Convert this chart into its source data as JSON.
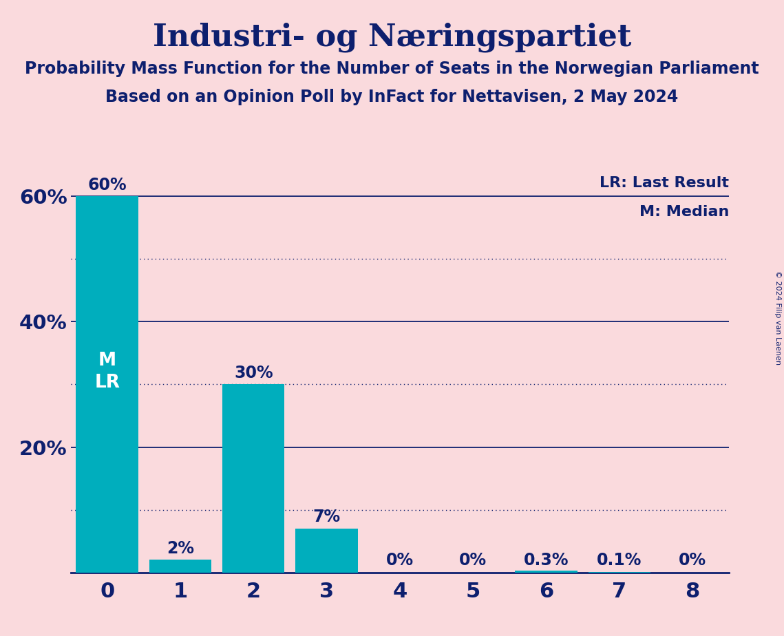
{
  "title": "Industri- og Næringspartiet",
  "subtitle1": "Probability Mass Function for the Number of Seats in the Norwegian Parliament",
  "subtitle2": "Based on an Opinion Poll by InFact for Nettavisen, 2 May 2024",
  "copyright": "© 2024 Filip van Laenen",
  "categories": [
    0,
    1,
    2,
    3,
    4,
    5,
    6,
    7,
    8
  ],
  "values": [
    60,
    2,
    30,
    7,
    0,
    0,
    0.3,
    0.1,
    0
  ],
  "bar_color": "#00AEBD",
  "background_color": "#FADADD",
  "title_color": "#0D1F6E",
  "label_color_inside": "#FADADD",
  "label_color_outside": "#0D1F6E",
  "grid_color": "#0D1F6E",
  "legend_lr": "LR: Last Result",
  "legend_m": "M: Median",
  "dotted_yticks": [
    10,
    30,
    50
  ],
  "solid_yticks": [
    20,
    40,
    60
  ],
  "ylim_max": 68,
  "xlim": [
    -0.5,
    8.5
  ]
}
